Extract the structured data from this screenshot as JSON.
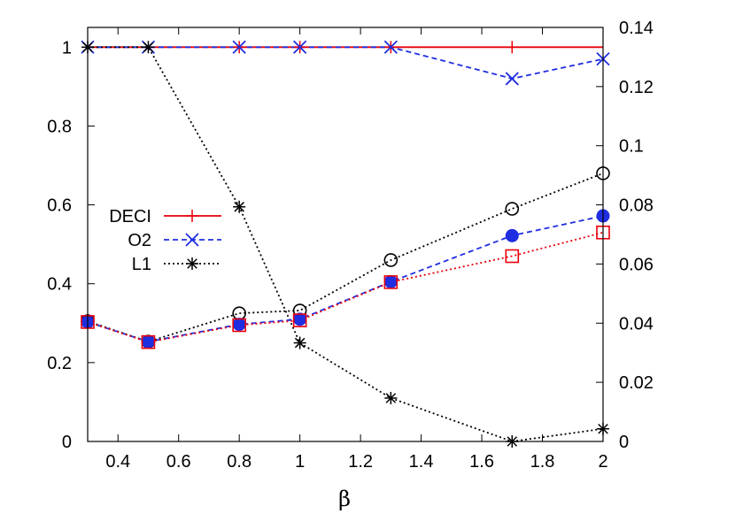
{
  "chart_data": {
    "type": "line",
    "title": "",
    "xlabel": "β",
    "ylabel": "",
    "y2label": "",
    "x": [
      0.3,
      0.5,
      0.8,
      1.0,
      1.3,
      1.7,
      2.0
    ],
    "xlim": [
      0.3,
      2.0
    ],
    "ylim": [
      0,
      1.05
    ],
    "y2lim": [
      0,
      0.14
    ],
    "grid": false,
    "legend_position": "center-left",
    "x_ticks": [
      {
        "v": 0.4,
        "label": "0.4"
      },
      {
        "v": 0.6,
        "label": "0.6"
      },
      {
        "v": 0.8,
        "label": "0.8"
      },
      {
        "v": 1.0,
        "label": "1"
      },
      {
        "v": 1.2,
        "label": "1.2"
      },
      {
        "v": 1.4,
        "label": "1.4"
      },
      {
        "v": 1.6,
        "label": "1.6"
      },
      {
        "v": 1.8,
        "label": "1.8"
      },
      {
        "v": 2.0,
        "label": "2"
      }
    ],
    "y_ticks": [
      {
        "v": 0,
        "label": "0"
      },
      {
        "v": 0.2,
        "label": "0.2"
      },
      {
        "v": 0.4,
        "label": "0.4"
      },
      {
        "v": 0.6,
        "label": "0.6"
      },
      {
        "v": 0.8,
        "label": "0.8"
      },
      {
        "v": 1.0,
        "label": "1"
      }
    ],
    "y2_ticks": [
      {
        "v": 0,
        "label": "0"
      },
      {
        "v": 0.02,
        "label": "0.02"
      },
      {
        "v": 0.04,
        "label": "0.04"
      },
      {
        "v": 0.06,
        "label": "0.06"
      },
      {
        "v": 0.08,
        "label": "0.08"
      },
      {
        "v": 0.1,
        "label": "0.1"
      },
      {
        "v": 0.12,
        "label": "0.12"
      },
      {
        "v": 0.14,
        "label": "0.14"
      }
    ],
    "series": [
      {
        "name": "DECI",
        "axis": "left",
        "color": "#e8000b",
        "dash": "solid",
        "marker": "plus",
        "show_markers": [
          false,
          false,
          true,
          true,
          true,
          true,
          false
        ],
        "values": [
          1,
          1,
          1,
          1,
          1,
          1,
          1
        ]
      },
      {
        "name": "O2",
        "axis": "left",
        "color": "#1f2ee0",
        "dash": "dashed",
        "marker": "x",
        "values": [
          1,
          1,
          1,
          1,
          1,
          0.92,
          0.97
        ]
      },
      {
        "name": "L1",
        "axis": "left",
        "color": "#000000",
        "dash": "dotted",
        "marker": "asterisk",
        "values": [
          1,
          1,
          0.595,
          0.25,
          0.11,
          0.0,
          0.032
        ]
      },
      {
        "name": "",
        "axis": "left",
        "color": "#000000",
        "dash": "dotted",
        "marker": "circle-open",
        "values": [
          0.305,
          0.253,
          0.325,
          0.332,
          0.46,
          0.59,
          0.68
        ]
      },
      {
        "name": "",
        "axis": "left",
        "color": "#1f2ee0",
        "dash": "dashed",
        "marker": "circle-filled",
        "values": [
          0.303,
          0.253,
          0.297,
          0.31,
          0.405,
          0.522,
          0.572
        ]
      },
      {
        "name": "",
        "axis": "left",
        "color": "#e8000b",
        "dash": "dotted",
        "marker": "square-open",
        "values": [
          0.303,
          0.252,
          0.295,
          0.307,
          0.404,
          0.47,
          0.53
        ]
      }
    ],
    "colors": {
      "axis": "#000000",
      "deci": "#e8000b",
      "o2": "#1f2ee0",
      "l1": "#000000"
    }
  }
}
